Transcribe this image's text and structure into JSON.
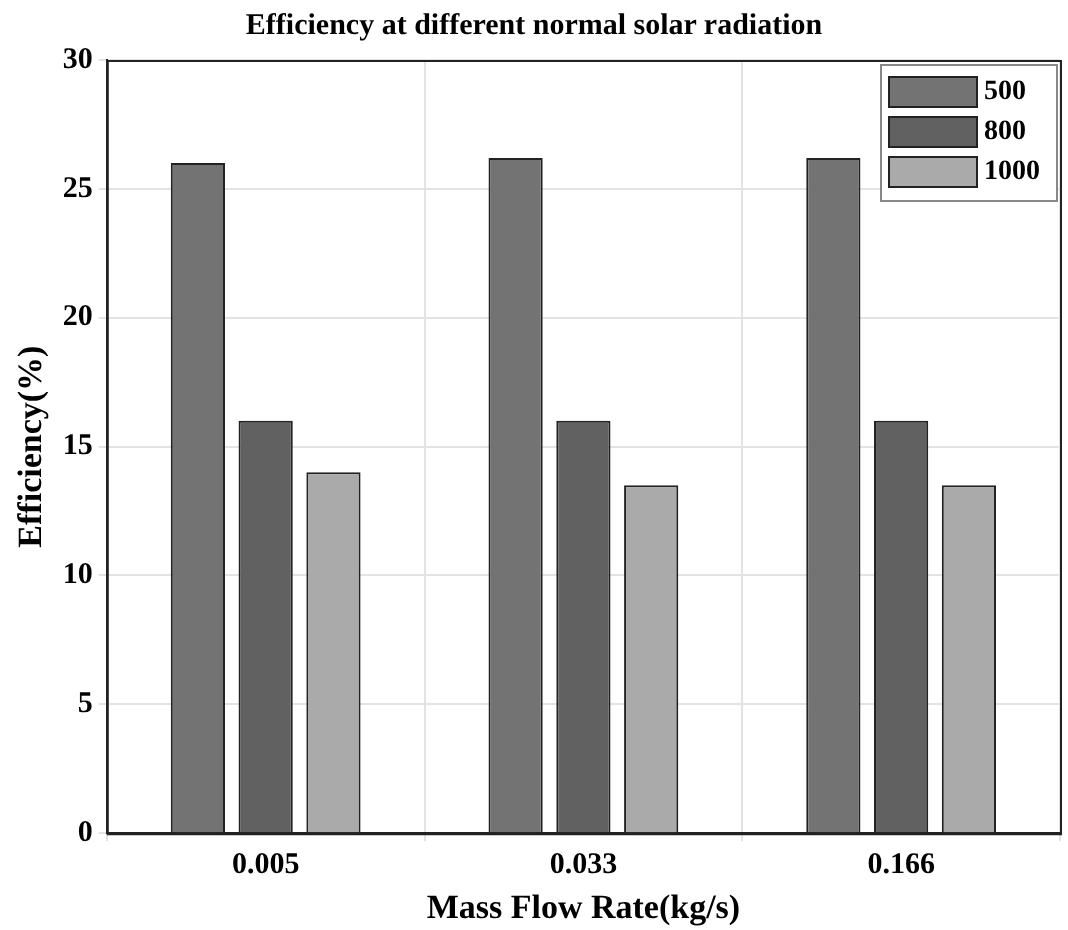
{
  "chart_data": {
    "type": "bar",
    "title": "Efficiency at different normal solar radiation",
    "xlabel": "Mass Flow Rate(kg/s)",
    "ylabel": "Efficiency(%)",
    "categories": [
      "0.005",
      "0.033",
      "0.166"
    ],
    "series": [
      {
        "name": "500",
        "color": "#737373",
        "values": [
          26,
          26.2,
          26.2
        ]
      },
      {
        "name": "800",
        "color": "#616161",
        "values": [
          16,
          16,
          16
        ]
      },
      {
        "name": "1000",
        "color": "#aaaaaa",
        "values": [
          14,
          13.5,
          13.5
        ]
      }
    ],
    "ylim": [
      0,
      30
    ],
    "yticks": [
      0,
      5,
      10,
      15,
      20,
      25,
      30
    ],
    "grid": true,
    "legend": "top right"
  }
}
